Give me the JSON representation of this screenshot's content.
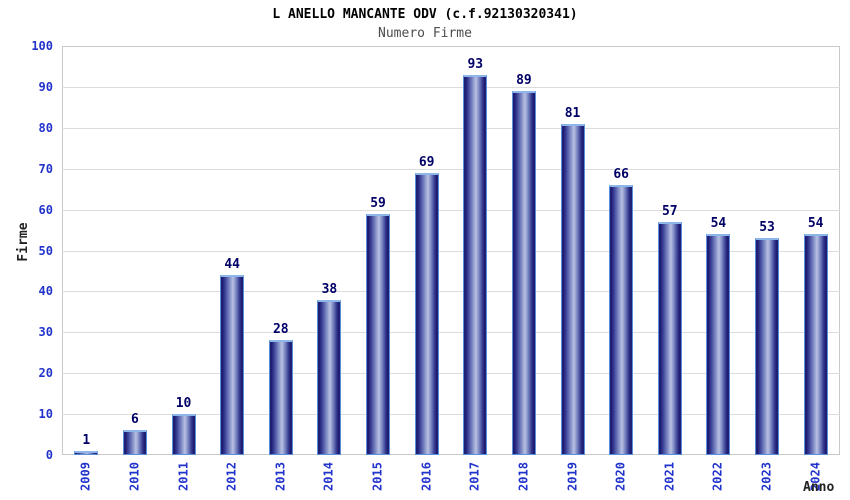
{
  "header": {
    "title": "L ANELLO MANCANTE ODV (c.f.92130320341)",
    "subtitle": "Numero Firme"
  },
  "chart_data": {
    "type": "bar",
    "title": "L ANELLO MANCANTE ODV (c.f.92130320341)",
    "subtitle": "Numero Firme",
    "categories": [
      "2009",
      "2010",
      "2011",
      "2012",
      "2013",
      "2014",
      "2015",
      "2016",
      "2017",
      "2018",
      "2019",
      "2020",
      "2021",
      "2022",
      "2023",
      "2024"
    ],
    "values": [
      1,
      6,
      10,
      44,
      28,
      38,
      59,
      69,
      93,
      89,
      81,
      66,
      57,
      54,
      53,
      54
    ],
    "xlabel": "Anno",
    "ylabel": "Firme",
    "ylim": [
      0,
      100
    ],
    "ytick_step": 10,
    "yticks": [
      0,
      10,
      20,
      30,
      40,
      50,
      60,
      70,
      80,
      90,
      100
    ],
    "grid": "horizontal gridlines with alternating gray/white 10-unit bands",
    "legend": "none",
    "value_labels": "above each bar",
    "colors": {
      "bar_dark": "#1a1a6e",
      "bar_light_center": "#b9c1e2",
      "bar_outline": "#5b8dd9",
      "tick_label_blue": "#2233cc",
      "value_label_navy": "#000066",
      "band_gray": "#f2f2f2",
      "gridline": "#dcdcdc",
      "subtitle_gray": "#4d4d4d",
      "axis_title": "#222222"
    }
  }
}
